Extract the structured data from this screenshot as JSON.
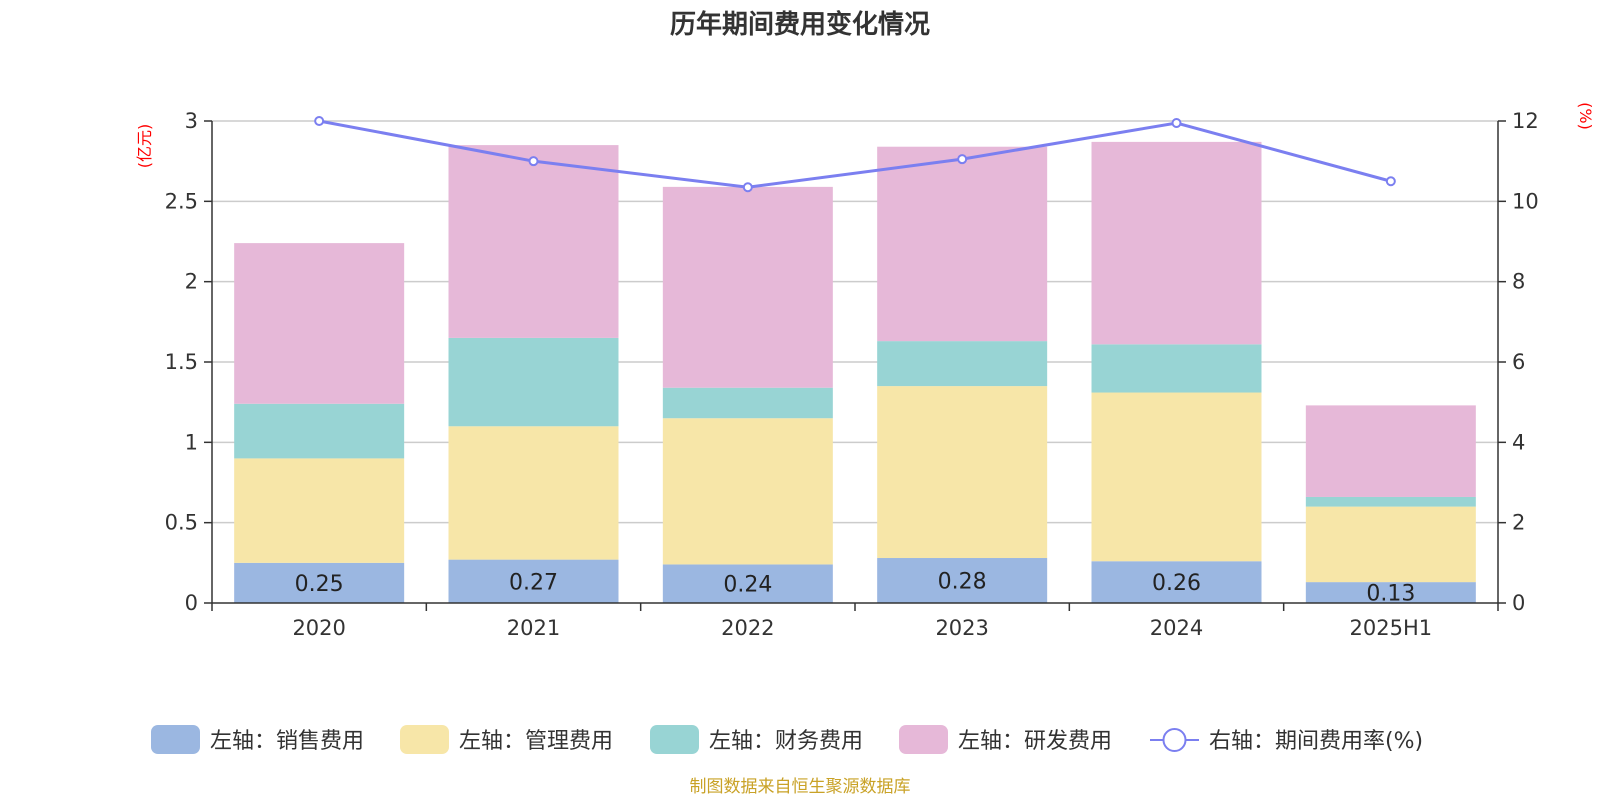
{
  "chart_data": {
    "type": "bar",
    "title": "历年期间费用变化情况",
    "categories": [
      "2020",
      "2021",
      "2022",
      "2023",
      "2024",
      "2025H1"
    ],
    "left_axis": {
      "unit_label": "(亿元)",
      "ylim": [
        0,
        3
      ],
      "ticks": [
        "0",
        "0.5",
        "1",
        "1.5",
        "2",
        "2.5",
        "3"
      ],
      "tick_values": [
        0,
        0.5,
        1,
        1.5,
        2,
        2.5,
        3
      ]
    },
    "right_axis": {
      "unit_label": "(%)",
      "ylim": [
        0,
        12
      ],
      "ticks": [
        "0",
        "2",
        "4",
        "6",
        "8",
        "10",
        "12"
      ],
      "tick_values": [
        0,
        2,
        4,
        6,
        8,
        10,
        12
      ]
    },
    "series": [
      {
        "name": "左轴：销售费用",
        "kind": "bar",
        "color": "#9bb7e1",
        "values": [
          0.25,
          0.27,
          0.24,
          0.28,
          0.26,
          0.13
        ],
        "labels": [
          "0.25",
          "0.27",
          "0.24",
          "0.28",
          "0.26",
          "0.13"
        ]
      },
      {
        "name": "左轴：管理费用",
        "kind": "bar",
        "color": "#f7e6a8",
        "values": [
          0.65,
          0.83,
          0.91,
          1.07,
          1.05,
          0.47
        ]
      },
      {
        "name": "左轴：财务费用",
        "kind": "bar",
        "color": "#98d4d4",
        "values": [
          0.34,
          0.55,
          0.19,
          0.28,
          0.3,
          0.06
        ]
      },
      {
        "name": "左轴：研发费用",
        "kind": "bar",
        "color": "#e6b8d8",
        "values": [
          1.0,
          1.2,
          1.25,
          1.21,
          1.26,
          0.57
        ]
      },
      {
        "name": "右轴：期间费用率(%)",
        "kind": "line",
        "color": "#7b7ff0",
        "values": [
          12.0,
          11.0,
          10.35,
          11.05,
          11.95,
          10.5
        ]
      }
    ],
    "legend_position": "bottom",
    "grid": true,
    "source_note": "制图数据来自恒生聚源数据库"
  }
}
